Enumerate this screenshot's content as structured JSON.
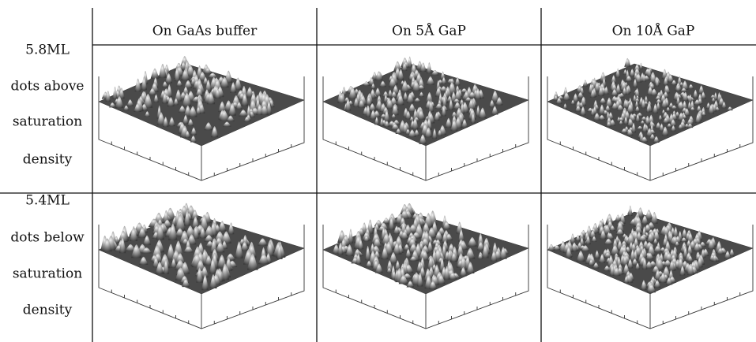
{
  "header": {
    "columns": [
      "On GaAs buffer",
      "On 5Å GaP",
      "On 10Å GaP"
    ]
  },
  "rows": [
    {
      "lines": [
        "5.8ML",
        "dots above",
        "saturation",
        "density"
      ]
    },
    {
      "lines": [
        "5.4ML",
        "dots below",
        "saturation",
        "density"
      ]
    }
  ]
}
